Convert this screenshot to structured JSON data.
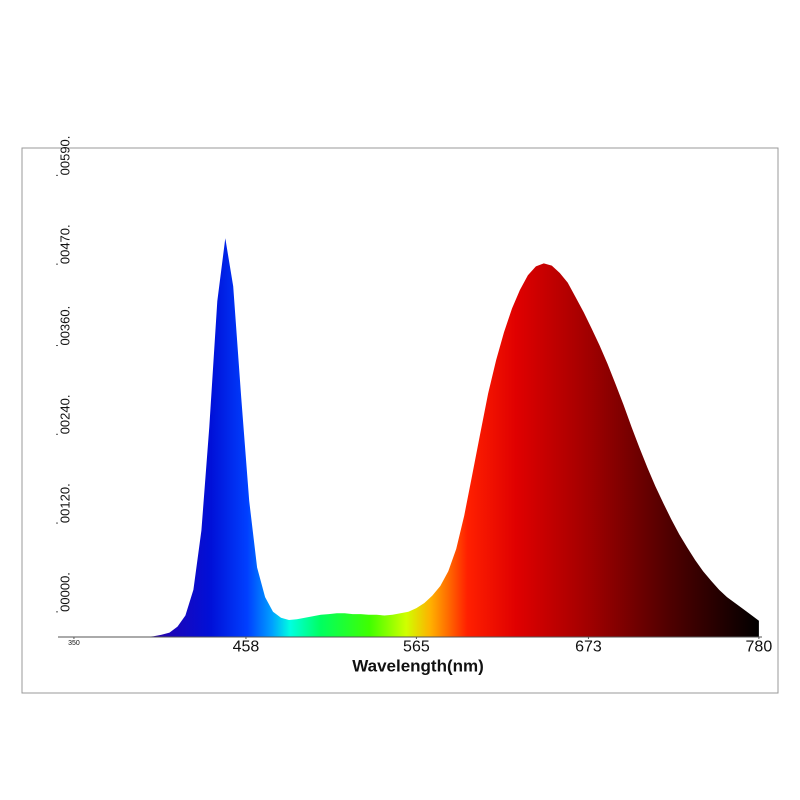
{
  "chart_data": {
    "type": "area",
    "x_label": "Wavelength(nm)",
    "x": [
      390,
      395,
      400,
      405,
      410,
      415,
      420,
      425,
      430,
      435,
      440,
      445,
      450,
      455,
      460,
      465,
      470,
      475,
      480,
      485,
      490,
      495,
      500,
      505,
      510,
      515,
      520,
      525,
      530,
      535,
      540,
      545,
      550,
      555,
      560,
      565,
      570,
      575,
      580,
      585,
      590,
      595,
      600,
      605,
      610,
      615,
      620,
      625,
      630,
      635,
      640,
      645,
      650,
      655,
      660,
      665,
      670,
      675,
      680,
      685,
      690,
      695,
      700,
      705,
      710,
      715,
      720,
      725,
      730,
      735,
      740,
      745,
      750,
      755,
      760,
      765,
      770,
      775,
      780
    ],
    "y": [
      -0.0034,
      -0.0034,
      -0.0033,
      -0.0031,
      -0.0028,
      -0.002,
      -0.0005,
      0.003,
      0.011,
      0.025,
      0.042,
      0.0505,
      0.044,
      0.029,
      0.015,
      0.006,
      0.002,
      0.0,
      -0.0008,
      -0.0011,
      -0.001,
      -0.0008,
      -0.0006,
      -0.0004,
      -0.0003,
      -0.0002,
      -0.0002,
      -0.0003,
      -0.0003,
      -0.0004,
      -0.0004,
      -0.0005,
      -0.0004,
      -0.0002,
      0.0,
      0.0005,
      0.0012,
      0.0022,
      0.0035,
      0.0055,
      0.0085,
      0.013,
      0.0185,
      0.024,
      0.0295,
      0.034,
      0.0378,
      0.041,
      0.0435,
      0.0455,
      0.0467,
      0.0471,
      0.0468,
      0.0458,
      0.0445,
      0.0425,
      0.0405,
      0.0383,
      0.036,
      0.0335,
      0.0308,
      0.028,
      0.025,
      0.0222,
      0.0195,
      0.017,
      0.0147,
      0.0125,
      0.0105,
      0.0087,
      0.007,
      0.0055,
      0.0042,
      0.003,
      0.002,
      0.0012,
      0.0004,
      -0.0004,
      -0.0012
    ],
    "xlim": [
      340,
      792
    ],
    "xticks": [
      350,
      458,
      565,
      673,
      780
    ],
    "ylim": [
      -0.0034,
      0.0627
    ],
    "yticks": [
      {
        "value": 0,
        "label": "00000."
      },
      {
        "value": 0.012,
        "label": "00120."
      },
      {
        "value": 0.024,
        "label": "00240."
      },
      {
        "value": 0.036,
        "label": "00360."
      },
      {
        "value": 0.047,
        "label": "00470."
      },
      {
        "value": 0.059,
        "label": "00590."
      }
    ]
  }
}
